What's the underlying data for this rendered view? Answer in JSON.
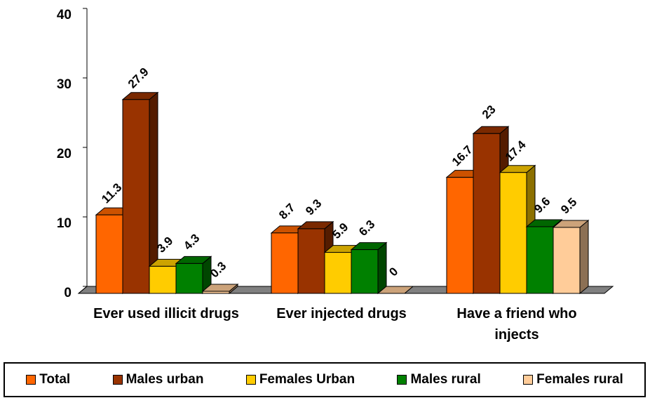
{
  "chart_data": {
    "type": "bar3d",
    "categories": [
      "Ever used illicit drugs",
      "Ever injected drugs",
      "Have a friend who injects"
    ],
    "series": [
      {
        "name": "Total",
        "color": "#FF6600",
        "values": [
          11.3,
          8.7,
          16.7
        ]
      },
      {
        "name": "Males urban",
        "color": "#993300",
        "values": [
          27.9,
          9.3,
          23
        ]
      },
      {
        "name": "Females Urban",
        "color": "#FFCC00",
        "values": [
          3.9,
          5.9,
          17.4
        ]
      },
      {
        "name": "Males rural",
        "color": "#008000",
        "values": [
          4.3,
          6.3,
          9.6
        ]
      },
      {
        "name": "Females rural",
        "color": "#FFCC99",
        "values": [
          0.3,
          0,
          9.5
        ]
      }
    ],
    "ylim": [
      0,
      40
    ],
    "yticks": [
      0,
      10,
      20,
      30,
      40
    ],
    "legend": "bottom"
  }
}
